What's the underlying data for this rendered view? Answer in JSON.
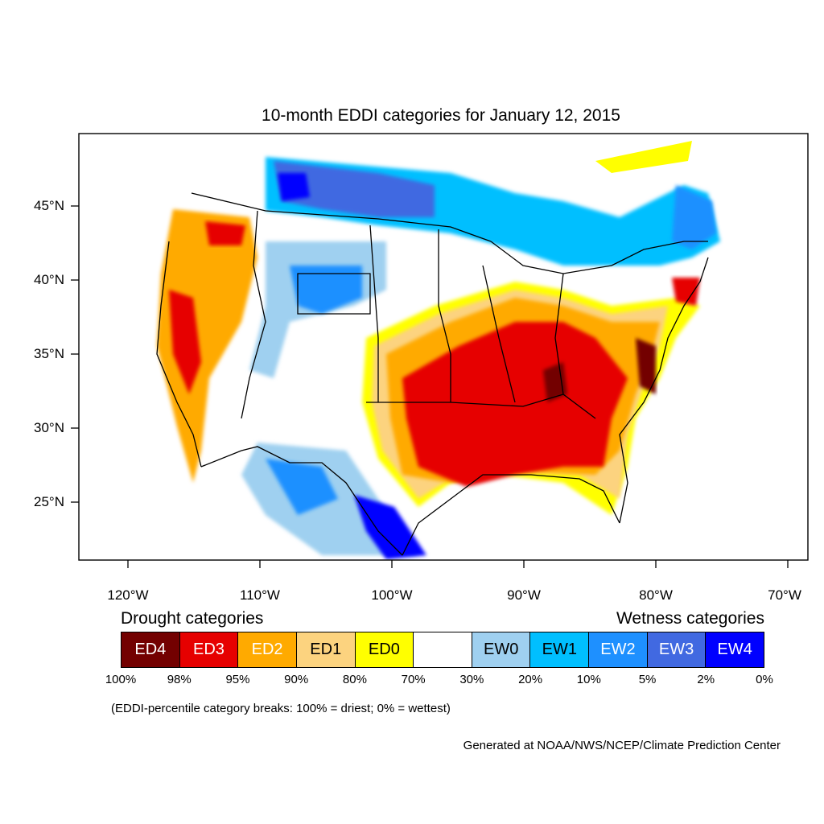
{
  "map": {
    "title": "10-month EDDI categories for January 12, 2015",
    "lat_labels": [
      "45°N",
      "40°N",
      "35°N",
      "30°N",
      "25°N"
    ],
    "lon_labels": [
      "120°W",
      "110°W",
      "100°W",
      "90°W",
      "80°W",
      "70°W"
    ]
  },
  "legend": {
    "drought_heading": "Drought categories",
    "wetness_heading": "Wetness categories",
    "categories": [
      {
        "label": "ED4",
        "color": "#730000",
        "text_color": "#ffffff"
      },
      {
        "label": "ED3",
        "color": "#e60000",
        "text_color": "#ffffff"
      },
      {
        "label": "ED2",
        "color": "#ffaa00",
        "text_color": "#ffffff"
      },
      {
        "label": "ED1",
        "color": "#fcd37f",
        "text_color": "#000000"
      },
      {
        "label": "ED0",
        "color": "#ffff00",
        "text_color": "#000000"
      },
      {
        "label": "",
        "color": "#ffffff",
        "text_color": "#000000"
      },
      {
        "label": "EW0",
        "color": "#9fd0f0",
        "text_color": "#000000"
      },
      {
        "label": "EW1",
        "color": "#00bfff",
        "text_color": "#000000"
      },
      {
        "label": "EW2",
        "color": "#1e90ff",
        "text_color": "#ffffff"
      },
      {
        "label": "EW3",
        "color": "#4169e1",
        "text_color": "#ffffff"
      },
      {
        "label": "EW4",
        "color": "#0000ff",
        "text_color": "#ffffff"
      }
    ],
    "breaks": [
      "100%",
      "98%",
      "95%",
      "90%",
      "80%",
      "70%",
      "30%",
      "20%",
      "10%",
      "5%",
      "2%",
      "0%"
    ],
    "note": "(EDDI-percentile category breaks: 100% = driest; 0% = wettest)"
  },
  "credit": "Generated at NOAA/NWS/NCEP/Climate Prediction Center"
}
